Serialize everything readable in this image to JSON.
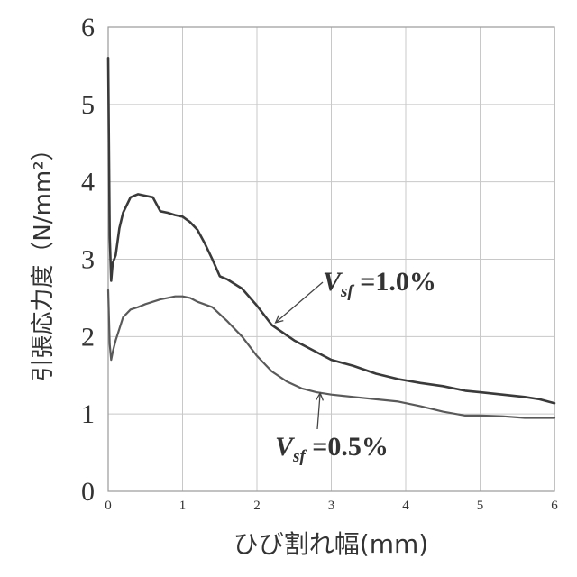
{
  "chart_data": {
    "type": "line",
    "title": "",
    "xlabel": "ひび割れ幅(mm)",
    "ylabel": "引張応力度（N/mm²）",
    "xlim": [
      0,
      6
    ],
    "ylim": [
      0,
      6
    ],
    "xticks": [
      "0",
      "1",
      "2",
      "3",
      "4",
      "5",
      "6"
    ],
    "yticks": [
      "0",
      "1",
      "2",
      "3",
      "4",
      "5",
      "6"
    ],
    "grid": true,
    "legend": "none",
    "colors": {
      "series_1": "#3a3a3a",
      "series_2": "#5a5a5a",
      "grid": "#c8c8c8",
      "text": "#333333"
    },
    "series": [
      {
        "name": "Vsf =1.0%",
        "x": [
          0,
          0.02,
          0.04,
          0.06,
          0.1,
          0.15,
          0.2,
          0.3,
          0.4,
          0.5,
          0.6,
          0.7,
          0.8,
          0.9,
          1.0,
          1.1,
          1.2,
          1.3,
          1.4,
          1.5,
          1.6,
          1.8,
          2.0,
          2.2,
          2.5,
          2.8,
          3.0,
          3.3,
          3.6,
          3.9,
          4.2,
          4.5,
          4.8,
          5.0,
          5.3,
          5.6,
          5.8,
          6.0
        ],
        "y": [
          5.6,
          3.3,
          2.72,
          2.95,
          3.05,
          3.4,
          3.6,
          3.8,
          3.84,
          3.82,
          3.8,
          3.62,
          3.6,
          3.57,
          3.55,
          3.48,
          3.38,
          3.2,
          3.0,
          2.78,
          2.74,
          2.62,
          2.4,
          2.15,
          1.95,
          1.8,
          1.7,
          1.62,
          1.52,
          1.45,
          1.4,
          1.36,
          1.3,
          1.28,
          1.25,
          1.22,
          1.19,
          1.14
        ]
      },
      {
        "name": "Vsf =0.5%",
        "x": [
          0,
          0.02,
          0.04,
          0.06,
          0.1,
          0.15,
          0.2,
          0.3,
          0.4,
          0.5,
          0.6,
          0.7,
          0.8,
          0.9,
          1.0,
          1.1,
          1.2,
          1.4,
          1.6,
          1.8,
          2.0,
          2.2,
          2.4,
          2.6,
          2.8,
          3.0,
          3.3,
          3.6,
          3.9,
          4.2,
          4.5,
          4.8,
          5.0,
          5.3,
          5.6,
          6.0
        ],
        "y": [
          2.6,
          1.9,
          1.7,
          1.8,
          1.95,
          2.1,
          2.25,
          2.35,
          2.38,
          2.42,
          2.45,
          2.48,
          2.5,
          2.52,
          2.52,
          2.5,
          2.45,
          2.38,
          2.2,
          2.0,
          1.75,
          1.55,
          1.42,
          1.33,
          1.28,
          1.25,
          1.22,
          1.19,
          1.16,
          1.1,
          1.03,
          0.98,
          0.98,
          0.97,
          0.95,
          0.95
        ]
      }
    ],
    "annotations": [
      {
        "main": "V",
        "sub": "sf",
        "value": " =1.0%",
        "series": "Vsf =1.0%",
        "points_to": [
          2.25,
          2.18
        ]
      },
      {
        "main": "V",
        "sub": "sf",
        "value": " =0.5%",
        "series": "Vsf =0.5%",
        "points_to": [
          2.85,
          1.27
        ]
      }
    ]
  }
}
